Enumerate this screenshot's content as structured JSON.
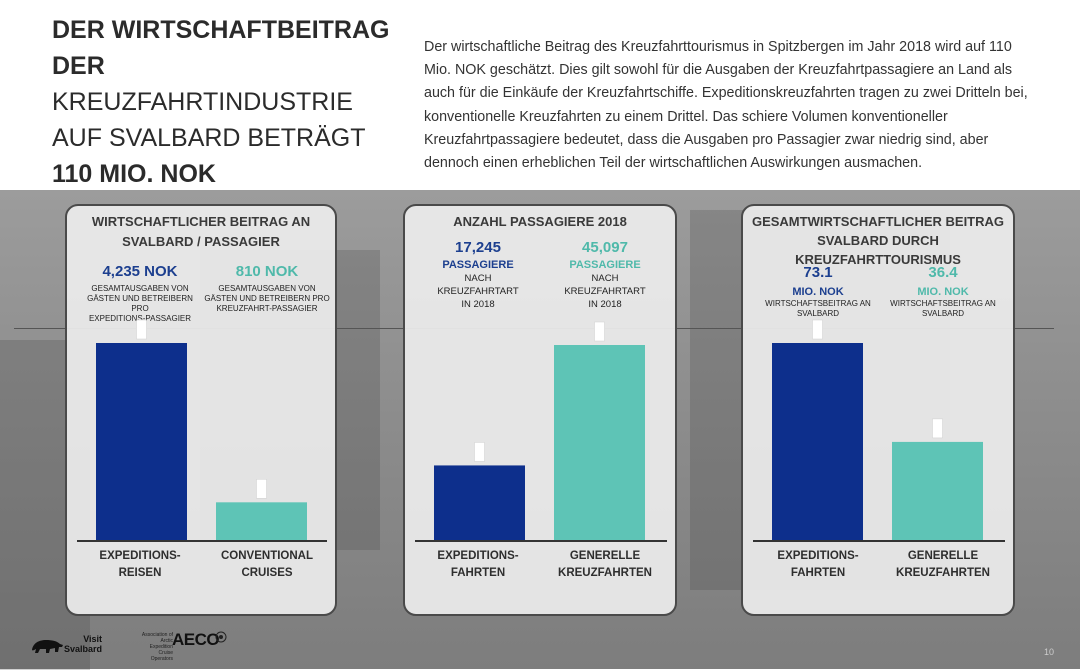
{
  "header": {
    "title_line1": "DER WIRTSCHAFTBEITRAG",
    "title_line2": "DER",
    "title_line3": "KREUZFAHRTINDUSTRIE",
    "title_line4": "AUF SVALBARD BETRÄGT",
    "title_line5": "110 MIO. NOK",
    "intro": "Der wirtschaftliche Beitrag des Kreuzfahrttourismus in Spitzbergen im Jahr 2018 wird auf 110 Mio. NOK geschätzt. Dies gilt sowohl für die Ausgaben der Kreuzfahrtpassagiere an Land als auch für die Einkäufe der Kreuzfahrtschiffe. Expeditionskreuzfahrten tragen zu zwei Dritteln bei, konventionelle Kreuzfahrten zu einem Drittel. Das schiere Volumen konventioneller Kreuzfahrtpassagiere bedeutet, dass die Ausgaben pro Passagier zwar niedrig sind, aber dennoch einen erheblichen Teil der wirtschaftlichen Auswirkungen ausmachen."
  },
  "panels": [
    {
      "title_line1": "WIRTSCHAFTLICHER BEITRAG AN",
      "title_line2": "SVALBARD / PASSAGIER",
      "stats": [
        {
          "value": "4,235 NOK",
          "line1": "GESAMTAUSGABEN VON",
          "line2": "GÄSTEN UND BETREIBERN PRO",
          "line3": "EXPEDITIONS-PASSAGIER"
        },
        {
          "value": "810 NOK",
          "line1": "GESAMTAUSGABEN VON",
          "line2": "GÄSTEN UND BETREIBERN PRO",
          "line3": "KREUZFAHRT-PASSAGIER"
        }
      ],
      "categories": [
        {
          "line1": "EXPEDITIONS-",
          "line2": "REISEN"
        },
        {
          "line1": "CONVENTIONAL",
          "line2": "CRUISES"
        }
      ]
    },
    {
      "title_line1": "ANZAHL PASSAGIERE 2018",
      "stats": [
        {
          "value": "17,245",
          "unit": "PASSAGIERE",
          "line1": "NACH",
          "line2": "KREUZFAHRTART",
          "line3": "IN 2018"
        },
        {
          "value": "45,097",
          "unit": "PASSAGIERE",
          "line1": "NACH",
          "line2": "KREUZFAHRTART",
          "line3": "IN 2018"
        }
      ],
      "categories": [
        {
          "line1": "EXPEDITIONS-",
          "line2": "FAHRTEN"
        },
        {
          "line1": "GENERELLE",
          "line2": "KREUZFAHRTEN"
        }
      ]
    },
    {
      "title_line1": "GESAMTWIRTSCHAFTLICHER BEITRAG",
      "title_line2": "SVALBARD DURCH",
      "title_line3": "KREUZFAHRTTOURISMUS",
      "stats": [
        {
          "value": "73.1",
          "unit": "MIO. NOK",
          "line1": "WIRTSCHAFTSBEITRAG AN",
          "line2": "SVALBARD"
        },
        {
          "value": "36.4",
          "unit": "MIO. NOK",
          "line1": "WIRTSCHAFTSBEITRAG AN",
          "line2": "SVALBARD"
        }
      ],
      "categories": [
        {
          "line1": "EXPEDITIONS-",
          "line2": "FAHRTEN"
        },
        {
          "line1": "GENERELLE",
          "line2": "KREUZFAHRTEN"
        }
      ]
    }
  ],
  "chart_data": [
    {
      "type": "bar",
      "title": "WIRTSCHAFTLICHER BEITRAG AN SVALBARD / PASSAGIER",
      "categories": [
        "EXPEDITIONS-REISEN",
        "CONVENTIONAL CRUISES"
      ],
      "values": [
        4235,
        810
      ],
      "ylim": [
        0,
        4235
      ],
      "colors": [
        "#0d2f8c",
        "#5ec4b6"
      ]
    },
    {
      "type": "bar",
      "title": "ANZAHL PASSAGIERE 2018",
      "categories": [
        "EXPEDITIONS-FAHRTEN",
        "GENERELLE KREUZFAHRTEN"
      ],
      "values": [
        17245,
        45097
      ],
      "ylim": [
        0,
        45097
      ],
      "colors": [
        "#0d2f8c",
        "#5ec4b6"
      ]
    },
    {
      "type": "bar",
      "title": "GESAMTWIRTSCHAFTLICHER BEITRAG SVALBARD DURCH KREUZFAHRTTOURISMUS",
      "categories": [
        "EXPEDITIONS-FAHRTEN",
        "GENERELLE KREUZFAHRTEN"
      ],
      "values": [
        73.1,
        36.4
      ],
      "ylim": [
        0,
        73.1
      ],
      "colors": [
        "#0d2f8c",
        "#5ec4b6"
      ]
    }
  ],
  "colors": {
    "navy": "#0d2f8c",
    "teal": "#5ec4b6",
    "stat_navy": "#1c3f8f",
    "stat_teal": "#4fb9aa"
  },
  "footer": {
    "visit_line1": "Visit",
    "visit_line2": "Svalbard",
    "aeco_logo": "AECO",
    "aeco_sub_line1": "Association of",
    "aeco_sub_line2": "Arctic Expedition Cruise",
    "aeco_sub_line3": "Operators",
    "page_number": "10"
  }
}
